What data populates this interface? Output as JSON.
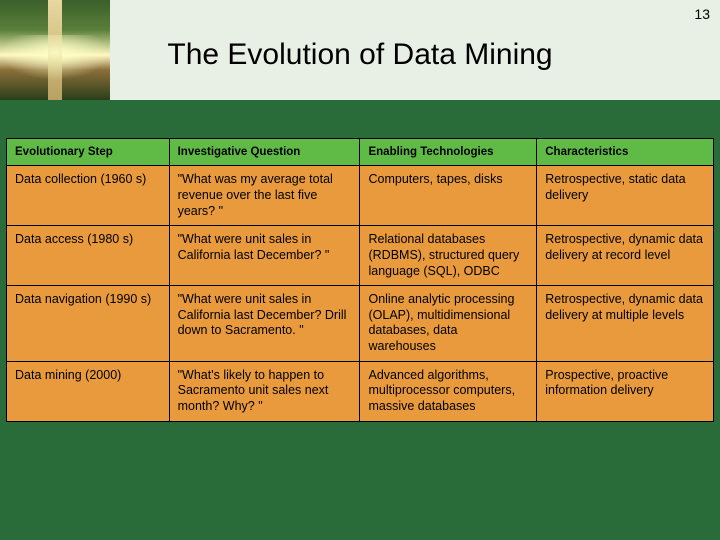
{
  "page_number": "13",
  "title": "The Evolution of Data Mining",
  "table": {
    "header_bg": "#5fbb46",
    "cell_bg": "#e89a3c",
    "columns": [
      "Evolutionary Step",
      "Investigative Question",
      "Enabling Technologies",
      "Characteristics"
    ],
    "rows": [
      [
        "Data collection (1960 s)",
        "\"What was my average total revenue over the last five years? \"",
        "Computers, tapes, disks",
        "Retrospective, static data delivery"
      ],
      [
        "Data access (1980 s)",
        "\"What were unit sales in California last December? \"",
        "Relational databases (RDBMS), structured query language (SQL), ODBC",
        "Retrospective, dynamic data delivery at record level"
      ],
      [
        "Data navigation (1990 s)",
        "\"What were unit sales in California last December? Drill down to Sacramento. \"",
        "Online analytic processing (OLAP), multidimensional databases, data warehouses",
        "Retrospective, dynamic data delivery at multiple levels"
      ],
      [
        "Data mining (2000)",
        "\"What's likely to happen to Sacramento unit sales next month? Why? \"",
        "Advanced algorithms, multiprocessor computers, massive databases",
        "Prospective, proactive information delivery"
      ]
    ]
  }
}
